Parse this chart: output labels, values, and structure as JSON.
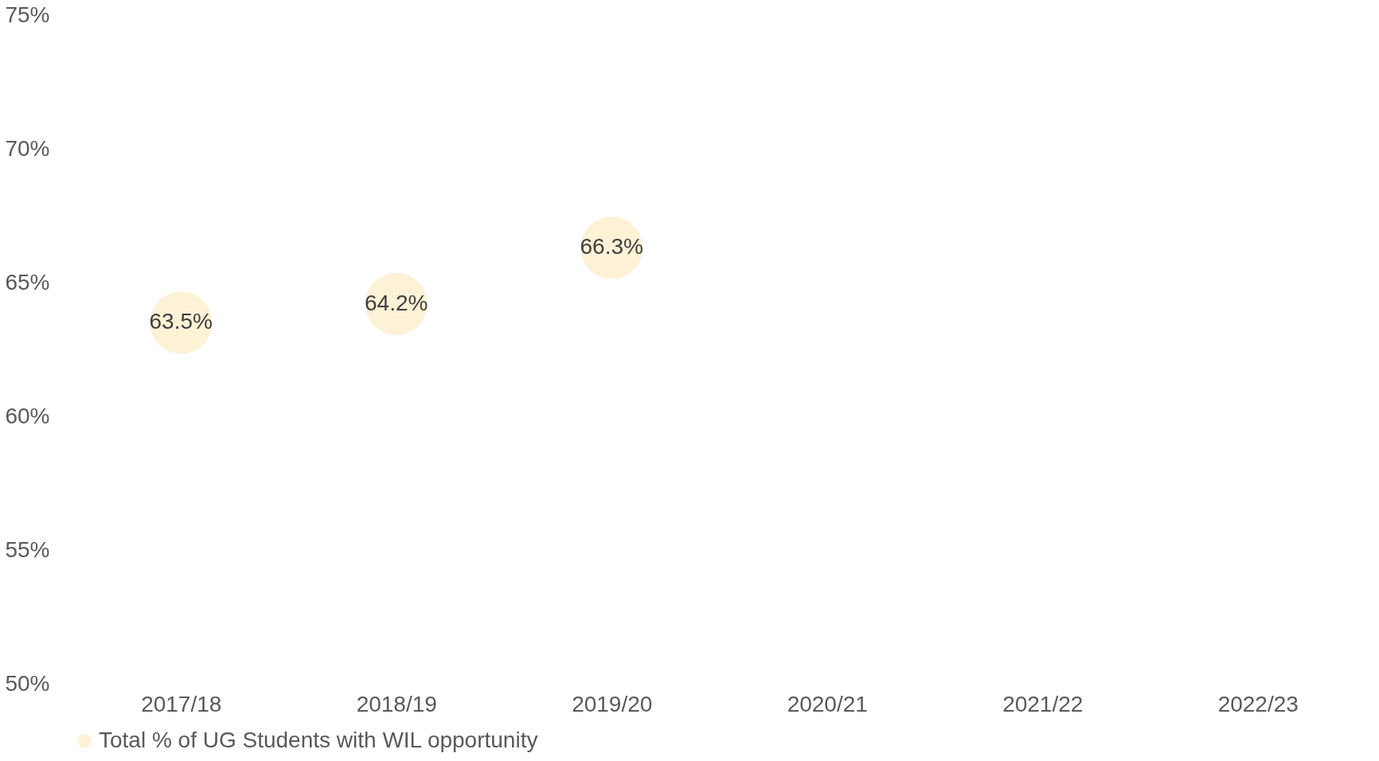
{
  "chart_data": {
    "type": "scatter",
    "categories": [
      "2017/18",
      "2018/19",
      "2019/20",
      "2020/21",
      "2021/22",
      "2022/23"
    ],
    "series": [
      {
        "name": "Total % of UG Students with WIL opportunity",
        "color": "#fdf1d6",
        "values": [
          63.5,
          64.2,
          66.3,
          null,
          null,
          null
        ]
      }
    ],
    "value_labels": [
      "63.5%",
      "64.2%",
      "66.3%",
      null,
      null,
      null
    ],
    "ylim": [
      50,
      75
    ],
    "yticks": [
      {
        "value": 50,
        "label": "50%"
      },
      {
        "value": 55,
        "label": "55%"
      },
      {
        "value": 60,
        "label": "60%"
      },
      {
        "value": 65,
        "label": "65%"
      },
      {
        "value": 70,
        "label": "70%"
      },
      {
        "value": 75,
        "label": "75%"
      }
    ],
    "marker": "circle",
    "grid": false,
    "legend": "bottom"
  }
}
